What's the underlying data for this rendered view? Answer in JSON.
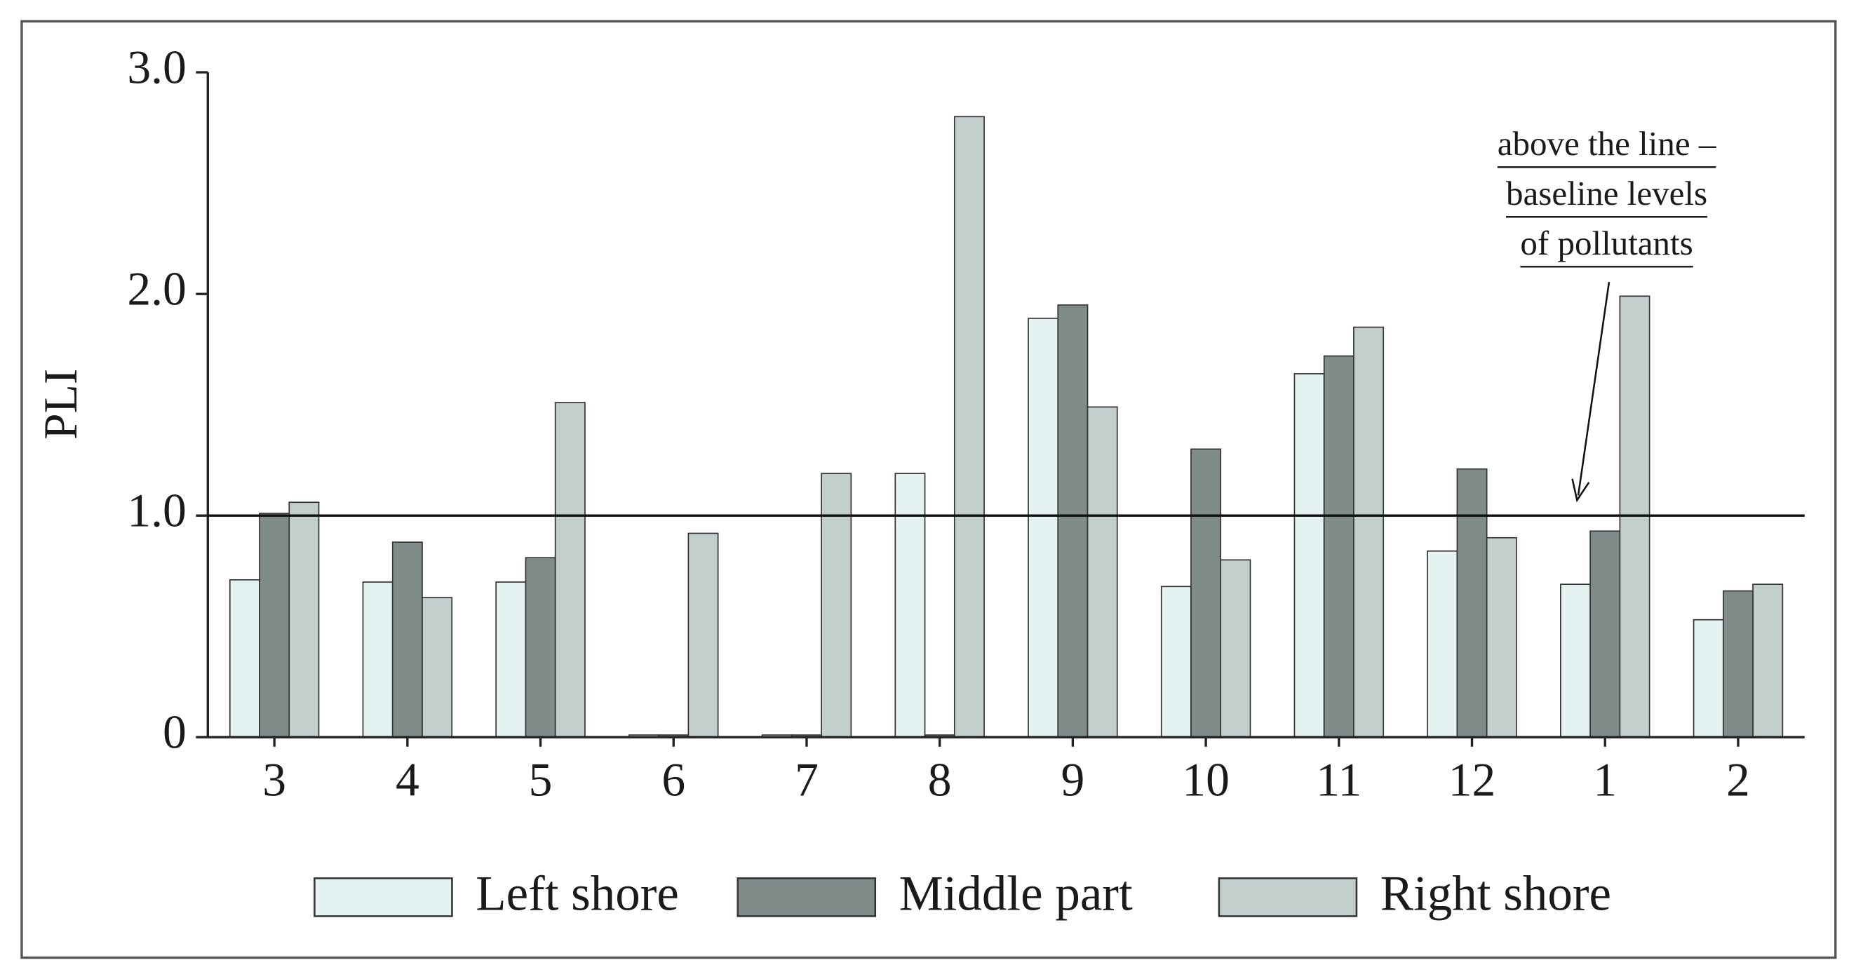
{
  "chart_data": {
    "type": "bar",
    "y_label": "PLI",
    "categories": [
      "3",
      "4",
      "5",
      "6",
      "7",
      "8",
      "9",
      "10",
      "11",
      "12",
      "1",
      "2"
    ],
    "series": [
      {
        "name": "Left shore",
        "color": "#e4f2f2",
        "values": [
          0.71,
          0.7,
          0.7,
          0.01,
          0.01,
          1.19,
          1.89,
          0.68,
          1.64,
          0.84,
          0.69,
          0.53
        ]
      },
      {
        "name": "Middle part",
        "color": "#7f8c8a",
        "values": [
          1.01,
          0.88,
          0.81,
          0.01,
          0.01,
          0.01,
          1.95,
          1.3,
          1.72,
          1.21,
          0.93,
          0.66
        ]
      },
      {
        "name": "Right shore",
        "color": "#c3cfcd",
        "values": [
          1.06,
          0.63,
          1.51,
          0.92,
          1.19,
          2.8,
          1.49,
          0.8,
          1.85,
          0.9,
          1.99,
          0.69
        ]
      }
    ],
    "ylim": [
      0,
      3
    ],
    "yticks": [
      0,
      {
        "value": 1,
        "label": "1.0"
      },
      {
        "value": 2,
        "label": "2.0"
      },
      {
        "value": 3,
        "label": "3.0"
      }
    ],
    "reference_line": 1,
    "annotation": [
      "above the line –",
      "baseline levels",
      "of pollutants"
    ],
    "grid": false
  }
}
